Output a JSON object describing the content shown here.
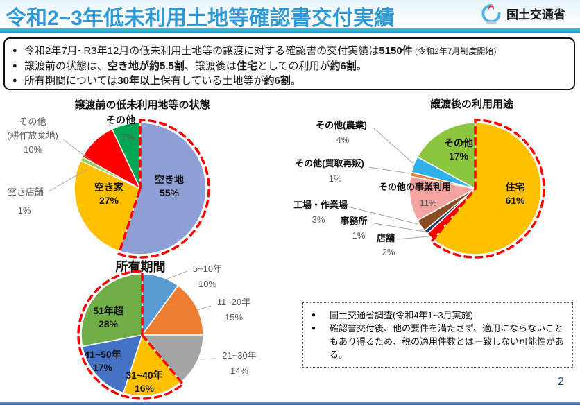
{
  "header": {
    "title": "令和2~3年低未利用土地等確認書交付実績",
    "agency": "国土交通省",
    "title_color": "#2d9ad7",
    "accent_bar_color": "#1e9cc4"
  },
  "summary": {
    "bullets": [
      [
        {
          "t": "令和2年7月~R3年12月の低未利用土地等の譲渡に対する確認書の交付実績は"
        },
        {
          "t": "5150件",
          "b": true
        },
        {
          "t": " (令和2年7月制度開始)",
          "s": true
        }
      ],
      [
        {
          "t": "譲渡前の状態は、"
        },
        {
          "t": "空き地が約5.5割",
          "b": true
        },
        {
          "t": "、譲渡後は"
        },
        {
          "t": "住宅",
          "b": true
        },
        {
          "t": "としての利用が"
        },
        {
          "t": "約6割",
          "b": true
        },
        {
          "t": "。"
        }
      ],
      [
        {
          "t": "所有期間については"
        },
        {
          "t": "30年以上",
          "b": true
        },
        {
          "t": "保有している土地等が"
        },
        {
          "t": "約6割",
          "b": true
        },
        {
          "t": "。"
        }
      ]
    ]
  },
  "chart_data": [
    {
      "type": "pie",
      "title": "譲渡前の低未利用地等の状態",
      "start_angle": 0,
      "direction": "clockwise",
      "slices": [
        {
          "name": "空き地",
          "value": 55,
          "color": "#8e9fd5"
        },
        {
          "name": "空き家",
          "value": 27,
          "color": "#ffc000"
        },
        {
          "name": "空き店舗",
          "value": 1,
          "color": "#92d050"
        },
        {
          "name": "その他(耕作放棄地)",
          "value": 10,
          "color": "#ff0000",
          "label_lines": [
            "その他",
            "(耕作放棄地)"
          ]
        },
        {
          "name": "その他",
          "value": 7,
          "color": "#00a651"
        }
      ],
      "highlight": {
        "from": 0,
        "to": 0,
        "color": "#ff0000",
        "style": "dashed-outline"
      }
    },
    {
      "type": "pie",
      "title": "譲渡後の利用用途",
      "start_angle": 0,
      "direction": "clockwise",
      "slices": [
        {
          "name": "住宅",
          "value": 61,
          "color": "#ffc000"
        },
        {
          "name": "店舗",
          "value": 2,
          "color": "#ff0000"
        },
        {
          "name": "事務所",
          "value": 1,
          "color": "#203864"
        },
        {
          "name": "工場・作業場",
          "value": 3,
          "color": "#8a4b25"
        },
        {
          "name": "その他の事業利用",
          "value": 11,
          "color": "#f5a3a0"
        },
        {
          "name": "その他(買取再販)",
          "value": 1,
          "color": "#ed7d31"
        },
        {
          "name": "その他(農業)",
          "value": 4,
          "color": "#2fb0e8"
        },
        {
          "name": "その他",
          "value": 17,
          "color": "#8cc63f"
        }
      ],
      "highlight": {
        "from": 0,
        "to": 0,
        "color": "#ff0000",
        "style": "dashed-outline"
      }
    },
    {
      "type": "pie",
      "title": "所有期間",
      "start_angle": 0,
      "direction": "clockwise",
      "slices": [
        {
          "name": "5~10年",
          "value": 10,
          "color": "#5b9bd5"
        },
        {
          "name": "11~20年",
          "value": 15,
          "color": "#ed7d31"
        },
        {
          "name": "21~30年",
          "value": 14,
          "color": "#a5a5a5"
        },
        {
          "name": "31~40年",
          "value": 16,
          "color": "#ffc000"
        },
        {
          "name": "41~50年",
          "value": 17,
          "color": "#4472c4"
        },
        {
          "name": "51年超",
          "value": 28,
          "color": "#70ad47"
        }
      ],
      "highlight": {
        "from": 3,
        "to": 5,
        "color": "#ff0000",
        "style": "dashed-outline"
      }
    }
  ],
  "note": {
    "items": [
      "国土交通省調査(令和4年1~3月実施)",
      "確認書交付後、他の要件を満たさず、適用にならないこともあり得るため、税の適用件数とは一致しない可能性がある。"
    ]
  },
  "page_number": "2"
}
